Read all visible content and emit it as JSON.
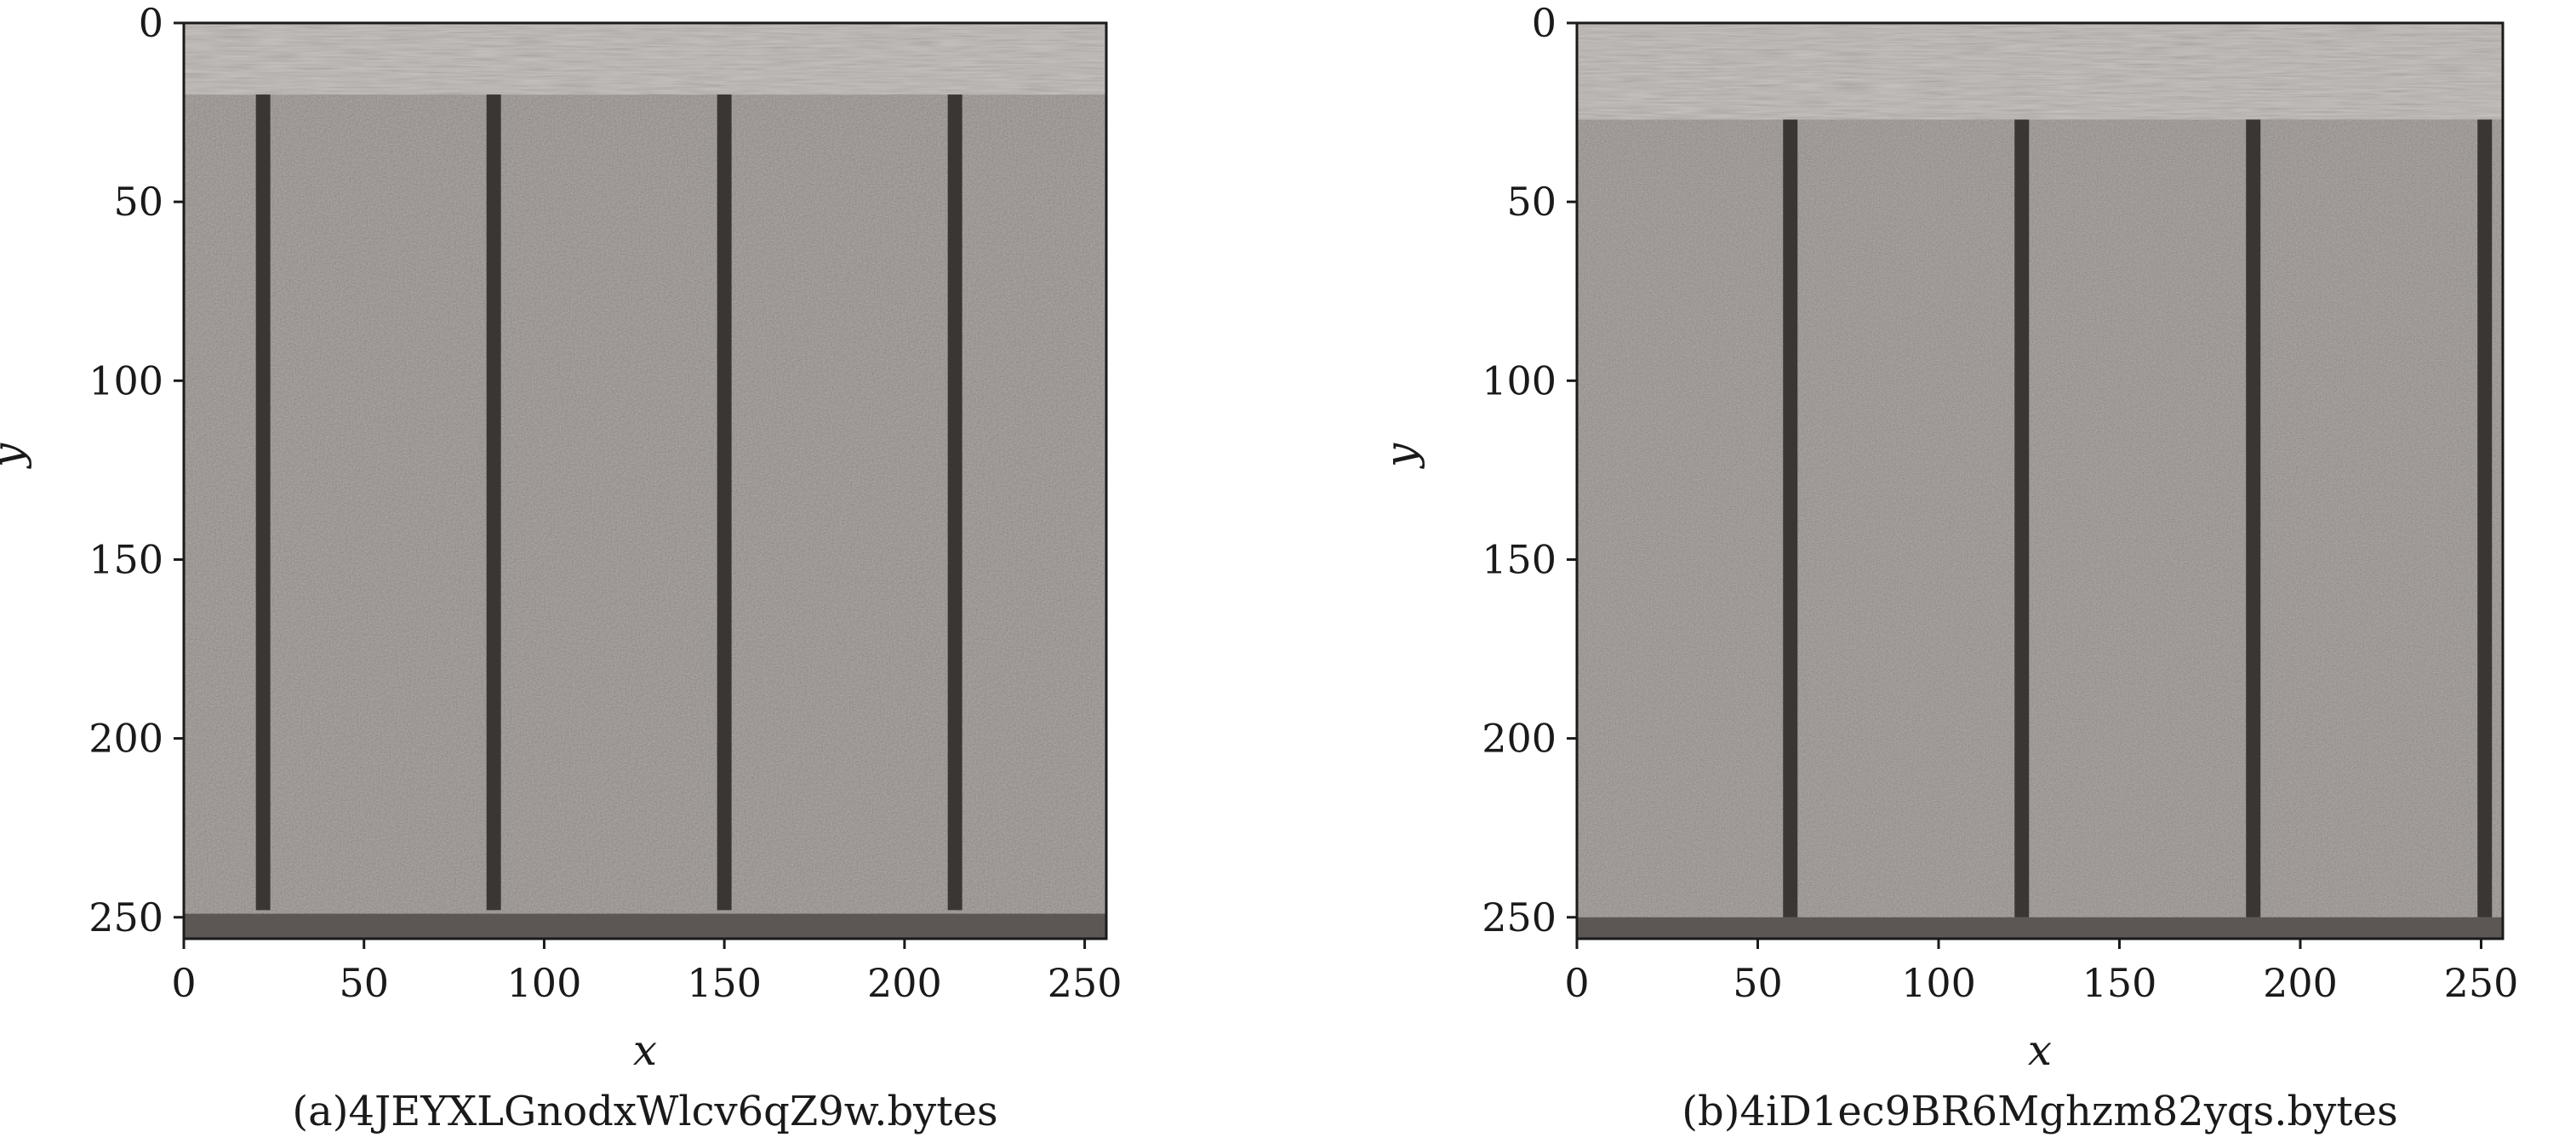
{
  "chart_data": [
    {
      "type": "heatmap",
      "caption": "(a)4JEYXLGnodxWlcv6qZ9w.bytes",
      "xlabel": "x",
      "ylabel": "y",
      "xlim": [
        0,
        256
      ],
      "ylim": [
        256,
        0
      ],
      "xticks": [
        0,
        50,
        100,
        150,
        200,
        250
      ],
      "yticks": [
        0,
        50,
        100,
        150,
        200,
        250
      ],
      "colormap": "grayscale",
      "header_band_y": [
        0,
        20
      ],
      "footer_band_y": [
        249,
        256
      ],
      "dark_columns_x": [
        22,
        86,
        150,
        214
      ],
      "dark_columns_y_range": [
        20,
        248
      ]
    },
    {
      "type": "heatmap",
      "caption": "(b)4iD1ec9BR6Mghzm82yqs.bytes",
      "xlabel": "x",
      "ylabel": "y",
      "xlim": [
        0,
        256
      ],
      "ylim": [
        256,
        0
      ],
      "xticks": [
        0,
        50,
        100,
        150,
        200,
        250
      ],
      "yticks": [
        0,
        50,
        100,
        150,
        200,
        250
      ],
      "colormap": "grayscale",
      "header_band_y": [
        0,
        27
      ],
      "footer_band_y": [
        250,
        256
      ],
      "dark_columns_x": [
        59,
        123,
        187,
        251
      ],
      "dark_columns_y_range": [
        27,
        250
      ]
    }
  ],
  "colors": {
    "background": "#ffffff",
    "image_base": "#7b7370",
    "header_band": "#b9b4b1",
    "dark_column": "#3a3634",
    "footer_band": "#5c5755",
    "text": "#1a1a1a"
  }
}
